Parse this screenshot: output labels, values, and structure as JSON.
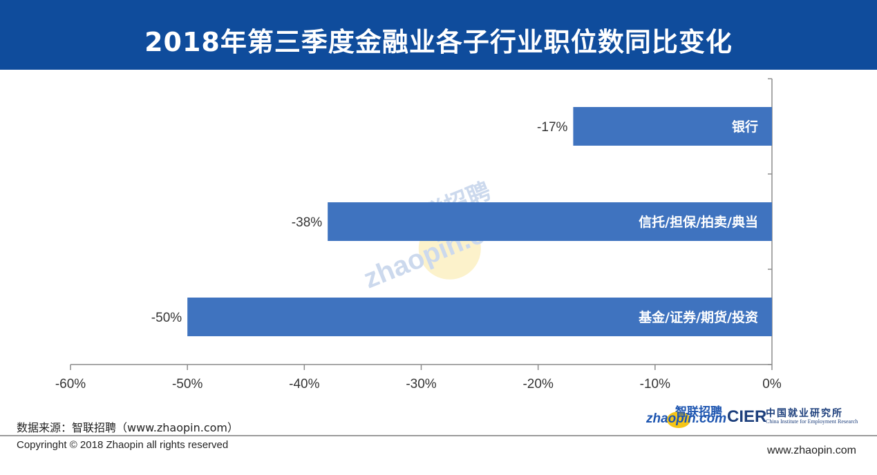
{
  "header": {
    "title": "2018年第三季度金融业各子行业职位数同比变化"
  },
  "chart_data": {
    "type": "bar",
    "orientation": "horizontal",
    "title": "2018年第三季度金融业各子行业职位数同比变化",
    "categories": [
      "银行",
      "信托/担保/拍卖/典当",
      "基金/证券/期货/投资"
    ],
    "values": [
      -17,
      -38,
      -50
    ],
    "data_labels": [
      "-17%",
      "-38%",
      "-50%"
    ],
    "xlim": [
      -60,
      0
    ],
    "xticks": [
      -60,
      -50,
      -40,
      -30,
      -20,
      -10,
      0
    ],
    "xtick_labels": [
      "-60%",
      "-50%",
      "-40%",
      "-30%",
      "-20%",
      "-10%",
      "0%"
    ],
    "grid": false,
    "bar_color": "#3f73bf"
  },
  "footer": {
    "source": "数据来源：智联招聘（www.zhaopin.com）",
    "copyright": "Copyringht © 2018 Zhaopin all rights reserved",
    "url": "www.zhaopin.com"
  },
  "logos": {
    "zhaopin_cn": "智联招聘",
    "zhaopin_en": "zhaopin.com",
    "cier_mark": "CIER",
    "cier_cn": "中国就业研究所",
    "cier_en": "China Institute for Employment Research"
  },
  "colors": {
    "header_bg": "#0f4c9c",
    "bar": "#3f73bf",
    "axis": "#8c8c8c"
  }
}
